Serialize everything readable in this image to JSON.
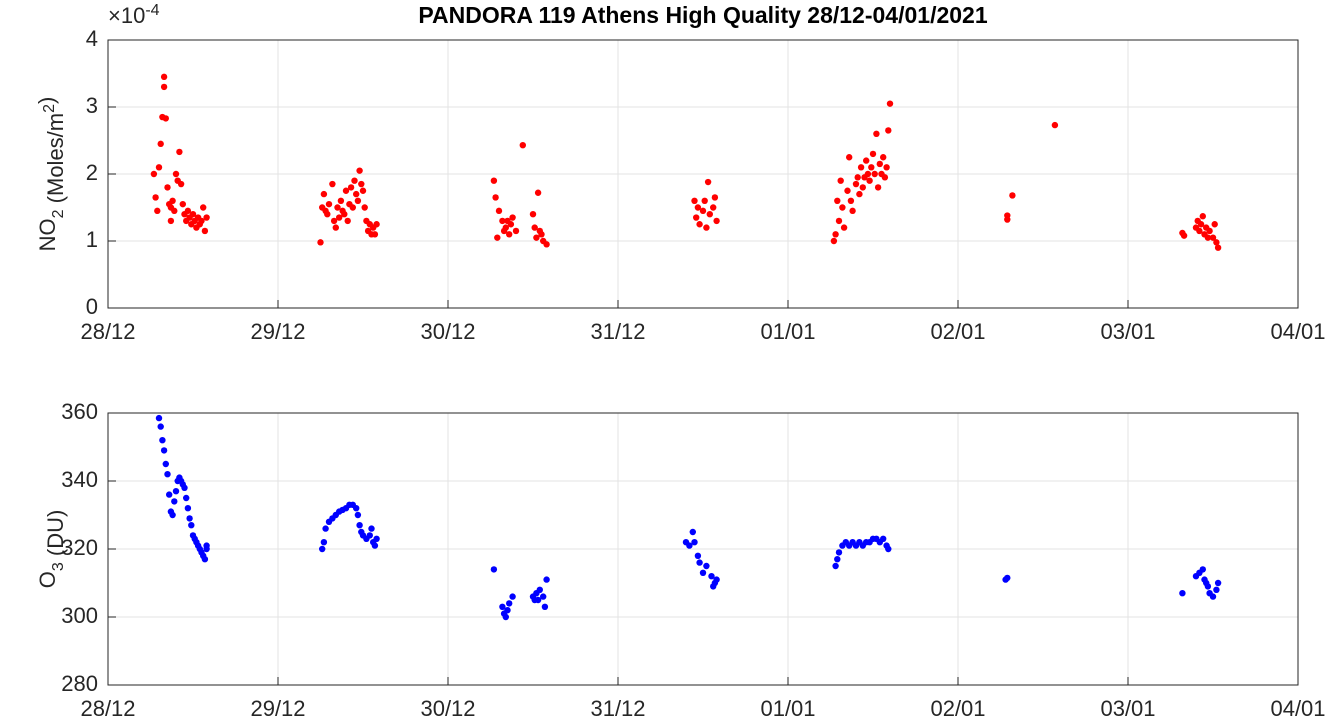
{
  "chart_data": [
    {
      "type": "scatter",
      "title": "PANDORA 119 Athens High Quality 28/12-04/01/2021",
      "ylabel": [
        {
          "text": "NO"
        },
        {
          "sub": "2"
        },
        {
          "text": " (Moles/m"
        },
        {
          "sup": "2"
        },
        {
          "text": ")"
        }
      ],
      "y_exponent": {
        "base": "×10",
        "sup": "-4"
      },
      "color": "#ff0000",
      "grid": true,
      "xlim": [
        0,
        7
      ],
      "xticks": [
        {
          "value": 0,
          "label": "28/12"
        },
        {
          "value": 1,
          "label": "29/12"
        },
        {
          "value": 2,
          "label": "30/12"
        },
        {
          "value": 3,
          "label": "31/12"
        },
        {
          "value": 4,
          "label": "01/01"
        },
        {
          "value": 5,
          "label": "02/01"
        },
        {
          "value": 6,
          "label": "03/01"
        },
        {
          "value": 7,
          "label": "04/01"
        }
      ],
      "ylim": [
        0,
        4
      ],
      "yticks": [
        0,
        1,
        2,
        3,
        4
      ],
      "x": [
        0.27,
        0.28,
        0.29,
        0.3,
        0.31,
        0.32,
        0.33,
        0.33,
        0.34,
        0.35,
        0.36,
        0.37,
        0.37,
        0.38,
        0.39,
        0.4,
        0.41,
        0.42,
        0.43,
        0.44,
        0.45,
        0.46,
        0.47,
        0.48,
        0.49,
        0.5,
        0.51,
        0.52,
        0.53,
        0.54,
        0.55,
        0.56,
        0.57,
        0.58,
        1.25,
        1.26,
        1.27,
        1.28,
        1.29,
        1.3,
        1.32,
        1.33,
        1.34,
        1.35,
        1.36,
        1.37,
        1.38,
        1.39,
        1.4,
        1.41,
        1.42,
        1.43,
        1.44,
        1.45,
        1.46,
        1.47,
        1.48,
        1.49,
        1.5,
        1.51,
        1.52,
        1.53,
        1.54,
        1.55,
        1.56,
        1.57,
        1.58,
        2.27,
        2.28,
        2.29,
        2.3,
        2.32,
        2.33,
        2.34,
        2.35,
        2.36,
        2.37,
        2.38,
        2.4,
        2.44,
        2.5,
        2.51,
        2.52,
        2.53,
        2.54,
        2.55,
        2.56,
        2.58,
        3.45,
        3.46,
        3.47,
        3.48,
        3.5,
        3.51,
        3.52,
        3.53,
        3.54,
        3.56,
        3.57,
        3.58,
        4.27,
        4.28,
        4.29,
        4.3,
        4.31,
        4.32,
        4.33,
        4.35,
        4.36,
        4.37,
        4.38,
        4.4,
        4.41,
        4.42,
        4.43,
        4.44,
        4.45,
        4.46,
        4.47,
        4.48,
        4.49,
        4.5,
        4.51,
        4.52,
        4.53,
        4.54,
        4.55,
        4.56,
        4.57,
        4.58,
        4.59,
        4.6,
        5.29,
        5.29,
        5.32,
        5.57,
        6.32,
        6.33,
        6.4,
        6.41,
        6.42,
        6.43,
        6.44,
        6.45,
        6.46,
        6.47,
        6.48,
        6.5,
        6.51,
        6.52,
        6.53
      ],
      "values": [
        2.0,
        1.65,
        1.45,
        2.1,
        2.45,
        2.85,
        3.45,
        3.3,
        2.83,
        1.8,
        1.55,
        1.5,
        1.3,
        1.6,
        1.45,
        2.0,
        1.9,
        2.33,
        1.85,
        1.55,
        1.4,
        1.3,
        1.45,
        1.35,
        1.25,
        1.4,
        1.3,
        1.2,
        1.35,
        1.25,
        1.3,
        1.5,
        1.15,
        1.35,
        0.98,
        1.5,
        1.7,
        1.45,
        1.4,
        1.55,
        1.85,
        1.3,
        1.2,
        1.5,
        1.35,
        1.6,
        1.45,
        1.4,
        1.75,
        1.3,
        1.55,
        1.8,
        1.5,
        1.9,
        1.7,
        1.6,
        2.05,
        1.85,
        1.75,
        1.5,
        1.3,
        1.15,
        1.25,
        1.1,
        1.2,
        1.1,
        1.25,
        1.9,
        1.65,
        1.05,
        1.45,
        1.3,
        1.15,
        1.2,
        1.3,
        1.1,
        1.25,
        1.35,
        1.15,
        2.43,
        1.4,
        1.2,
        1.05,
        1.72,
        1.15,
        1.1,
        1.0,
        0.95,
        1.6,
        1.35,
        1.5,
        1.25,
        1.45,
        1.6,
        1.2,
        1.88,
        1.4,
        1.5,
        1.65,
        1.3,
        1.0,
        1.1,
        1.6,
        1.3,
        1.9,
        1.5,
        1.2,
        1.75,
        2.25,
        1.6,
        1.45,
        1.85,
        1.95,
        1.7,
        2.1,
        1.8,
        1.95,
        2.2,
        2.0,
        1.9,
        2.1,
        2.3,
        2.0,
        2.6,
        1.8,
        2.15,
        2.0,
        2.25,
        1.95,
        2.1,
        2.65,
        3.05,
        1.38,
        1.32,
        1.68,
        2.73,
        1.12,
        1.08,
        1.2,
        1.3,
        1.15,
        1.25,
        1.37,
        1.1,
        1.2,
        1.05,
        1.15,
        1.05,
        1.25,
        0.98,
        0.9
      ]
    },
    {
      "type": "scatter",
      "ylabel": [
        {
          "text": "O"
        },
        {
          "sub": "3"
        },
        {
          "text": " (DU)"
        }
      ],
      "color": "#0000ff",
      "grid": true,
      "xlim": [
        0,
        7
      ],
      "xticks": [
        {
          "value": 0,
          "label": "28/12"
        },
        {
          "value": 1,
          "label": "29/12"
        },
        {
          "value": 2,
          "label": "30/12"
        },
        {
          "value": 3,
          "label": "31/12"
        },
        {
          "value": 4,
          "label": "01/01"
        },
        {
          "value": 5,
          "label": "02/01"
        },
        {
          "value": 6,
          "label": "03/01"
        },
        {
          "value": 7,
          "label": "04/01"
        }
      ],
      "ylim": [
        280,
        360
      ],
      "yticks": [
        280,
        300,
        320,
        340,
        360
      ],
      "x": [
        0.3,
        0.31,
        0.32,
        0.33,
        0.34,
        0.35,
        0.36,
        0.37,
        0.38,
        0.39,
        0.4,
        0.41,
        0.42,
        0.43,
        0.44,
        0.45,
        0.46,
        0.47,
        0.48,
        0.49,
        0.5,
        0.51,
        0.52,
        0.53,
        0.54,
        0.55,
        0.56,
        0.57,
        0.58,
        0.58,
        1.26,
        1.27,
        1.28,
        1.3,
        1.32,
        1.34,
        1.36,
        1.38,
        1.4,
        1.42,
        1.44,
        1.46,
        1.47,
        1.48,
        1.49,
        1.5,
        1.52,
        1.54,
        1.55,
        1.56,
        1.57,
        1.58,
        2.27,
        2.32,
        2.33,
        2.34,
        2.35,
        2.36,
        2.38,
        2.5,
        2.51,
        2.52,
        2.53,
        2.54,
        2.56,
        2.57,
        2.58,
        3.4,
        3.42,
        3.44,
        3.45,
        3.47,
        3.48,
        3.5,
        3.52,
        3.55,
        3.56,
        3.57,
        3.58,
        4.28,
        4.29,
        4.3,
        4.32,
        4.34,
        4.36,
        4.38,
        4.4,
        4.42,
        4.44,
        4.46,
        4.48,
        4.5,
        4.52,
        4.54,
        4.56,
        4.58,
        4.59,
        5.28,
        5.29,
        6.32,
        6.4,
        6.42,
        6.44,
        6.45,
        6.46,
        6.47,
        6.48,
        6.5,
        6.52,
        6.53
      ],
      "values": [
        358.5,
        356,
        352,
        349,
        345,
        342,
        336,
        331,
        330,
        334,
        337,
        340,
        341,
        340,
        339,
        338,
        335,
        332,
        329,
        327,
        324,
        323,
        322,
        321,
        320,
        319,
        318,
        317,
        320,
        321,
        320,
        322,
        326,
        328,
        329,
        330,
        331,
        331.5,
        332,
        333,
        333,
        332,
        330,
        327,
        325,
        324,
        323,
        324,
        326,
        322,
        321,
        323,
        314,
        303,
        301,
        300,
        302,
        304,
        306,
        306,
        305,
        307,
        305,
        308,
        306,
        303,
        311,
        322,
        321,
        325,
        322,
        318,
        316,
        313,
        315,
        312,
        309,
        310,
        311,
        315,
        317,
        319,
        321,
        322,
        321,
        322,
        321,
        322,
        321,
        322,
        322,
        323,
        323,
        322,
        323,
        321,
        320,
        311,
        311.5,
        307,
        312,
        313,
        314,
        311,
        310,
        309,
        307,
        306,
        308,
        310
      ]
    }
  ]
}
